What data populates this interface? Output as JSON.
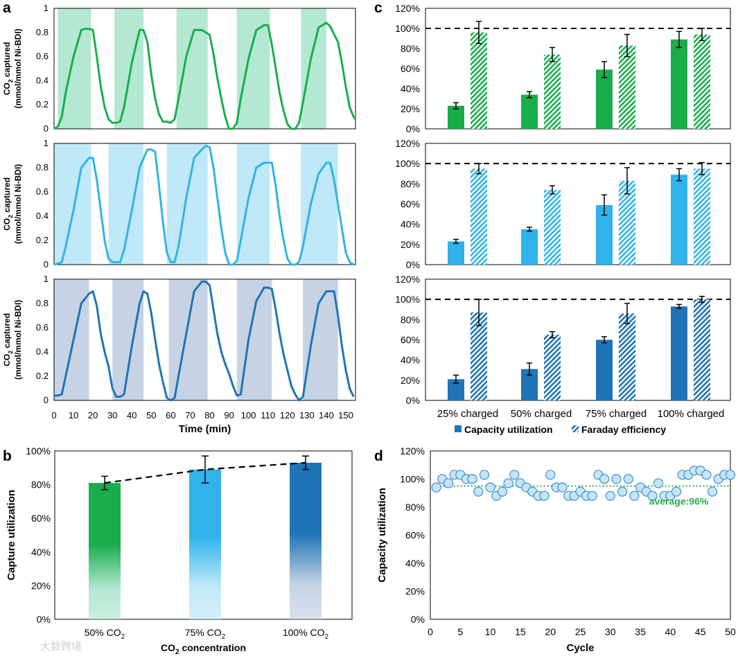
{
  "figure": {
    "panel_labels": [
      "a",
      "b",
      "c",
      "d"
    ],
    "watermark": "大数跨境"
  },
  "colors": {
    "green": "#1aad4b",
    "green_shade": "#b4e8d2",
    "cyan": "#2fb3ea",
    "cyan_shade": "#bfe9f8",
    "blue": "#1f73b7",
    "blue_shade": "#c5d3e4",
    "dashed_ref": "#000000",
    "avg_line": "#2ea84a",
    "scatter_fill": "#c9e4f6",
    "scatter_stroke": "#3a8fd0"
  },
  "chart_data": [
    {
      "panel": "a",
      "type": "line",
      "xlabel": "Time (min)",
      "ylabel_line1": "CO",
      "ylabel_sub": "2",
      "ylabel_line1_rest": " captured",
      "ylabel_line2": "(mmol/mmol Ni-BDI)",
      "xlim": [
        0,
        155
      ],
      "xticks": [
        "0",
        "10",
        "20",
        "30",
        "40",
        "50",
        "60",
        "70",
        "80",
        "90",
        "100",
        "110",
        "120",
        "130",
        "140",
        "150"
      ],
      "ylim": [
        0,
        1
      ],
      "yticks": [
        "0",
        "0.2",
        "0.4",
        "0.6",
        "0.8",
        "1"
      ],
      "rows": [
        {
          "color_key": "green",
          "shade_key": "green_shade",
          "shaded_intervals": [
            [
              2,
              19
            ],
            [
              31,
              46
            ],
            [
              63,
              79
            ],
            [
              94,
              111
            ],
            [
              127,
              140
            ]
          ],
          "x": [
            0,
            2,
            4,
            6,
            10,
            14,
            16,
            18,
            20,
            22,
            24,
            26,
            28,
            30,
            32,
            34,
            36,
            40,
            44,
            46,
            48,
            50,
            52,
            54,
            56,
            58,
            60,
            62,
            64,
            68,
            72,
            76,
            78,
            80,
            82,
            84,
            86,
            88,
            90,
            92,
            94,
            96,
            100,
            104,
            108,
            110,
            112,
            114,
            116,
            118,
            120,
            122,
            124,
            126,
            128,
            132,
            136,
            140,
            142,
            146,
            148,
            150,
            152,
            154,
            155
          ],
          "y": [
            0,
            0.02,
            0.1,
            0.3,
            0.6,
            0.82,
            0.83,
            0.83,
            0.82,
            0.6,
            0.35,
            0.18,
            0.08,
            0.05,
            0.05,
            0.06,
            0.18,
            0.55,
            0.82,
            0.82,
            0.72,
            0.45,
            0.25,
            0.12,
            0.06,
            0.06,
            0.05,
            0.08,
            0.25,
            0.6,
            0.82,
            0.82,
            0.8,
            0.78,
            0.62,
            0.42,
            0.25,
            0.1,
            0,
            0,
            0.05,
            0.25,
            0.58,
            0.82,
            0.86,
            0.86,
            0.7,
            0.5,
            0.3,
            0.15,
            0.04,
            0,
            0,
            0.05,
            0.22,
            0.58,
            0.84,
            0.88,
            0.85,
            0.72,
            0.55,
            0.35,
            0.18,
            0.1,
            0.08
          ]
        },
        {
          "color_key": "cyan",
          "shade_key": "cyan_shade",
          "shaded_intervals": [
            [
              0,
              19
            ],
            [
              28,
              46
            ],
            [
              58,
              79
            ],
            [
              94,
              111
            ],
            [
              127,
              146
            ]
          ],
          "x": [
            0,
            2,
            4,
            6,
            10,
            14,
            18,
            20,
            22,
            24,
            26,
            28,
            30,
            32,
            34,
            36,
            40,
            44,
            48,
            50,
            52,
            54,
            56,
            58,
            60,
            62,
            64,
            68,
            72,
            76,
            78,
            80,
            82,
            84,
            86,
            88,
            90,
            92,
            94,
            96,
            100,
            104,
            108,
            110,
            112,
            114,
            116,
            118,
            120,
            122,
            124,
            126,
            128,
            132,
            136,
            140,
            142,
            144,
            146,
            148,
            150,
            152,
            154
          ],
          "y": [
            0,
            0.01,
            0.02,
            0.15,
            0.45,
            0.8,
            0.88,
            0.88,
            0.7,
            0.45,
            0.2,
            0.05,
            0.02,
            0.02,
            0.02,
            0.12,
            0.45,
            0.8,
            0.95,
            0.95,
            0.93,
            0.65,
            0.35,
            0.1,
            0.02,
            0.02,
            0.15,
            0.55,
            0.88,
            0.95,
            0.98,
            0.97,
            0.8,
            0.55,
            0.3,
            0.1,
            0,
            0,
            0.03,
            0.2,
            0.55,
            0.8,
            0.84,
            0.84,
            0.84,
            0.65,
            0.4,
            0.2,
            0.05,
            0,
            0,
            0.02,
            0.15,
            0.5,
            0.75,
            0.84,
            0.84,
            0.7,
            0.5,
            0.3,
            0.1,
            0.02,
            0
          ]
        },
        {
          "color_key": "blue",
          "shade_key": "blue_shade",
          "shaded_intervals": [
            [
              0,
              18
            ],
            [
              30,
              46
            ],
            [
              59,
              79
            ],
            [
              94,
              112
            ],
            [
              128,
              146
            ]
          ],
          "x": [
            0,
            2,
            4,
            6,
            10,
            14,
            18,
            20,
            22,
            24,
            26,
            28,
            30,
            32,
            34,
            36,
            40,
            44,
            46,
            48,
            50,
            52,
            54,
            56,
            58,
            60,
            62,
            64,
            68,
            72,
            76,
            78,
            80,
            82,
            84,
            86,
            88,
            90,
            92,
            94,
            96,
            100,
            104,
            108,
            110,
            112,
            114,
            116,
            118,
            120,
            122,
            124,
            126,
            128,
            132,
            136,
            140,
            142,
            144,
            146,
            148,
            150,
            152,
            154
          ],
          "y": [
            0.04,
            0.04,
            0.05,
            0.2,
            0.5,
            0.8,
            0.88,
            0.9,
            0.78,
            0.55,
            0.4,
            0.28,
            0.1,
            0.03,
            0.03,
            0.05,
            0.45,
            0.8,
            0.9,
            0.88,
            0.72,
            0.5,
            0.3,
            0.15,
            0.02,
            0,
            0.02,
            0.2,
            0.55,
            0.9,
            0.98,
            0.98,
            0.95,
            0.75,
            0.55,
            0.4,
            0.3,
            0.22,
            0.12,
            0.04,
            0.05,
            0.5,
            0.82,
            0.93,
            0.93,
            0.92,
            0.75,
            0.55,
            0.38,
            0.25,
            0.12,
            0.05,
            0,
            0.03,
            0.45,
            0.8,
            0.9,
            0.9,
            0.9,
            0.7,
            0.45,
            0.25,
            0.1,
            0.03
          ]
        }
      ]
    },
    {
      "panel": "b",
      "type": "bar",
      "xlabel_main": "CO",
      "xlabel_sub": "2",
      "xlabel_rest": " concentration",
      "ylabel": "Capture utilization",
      "ylim": [
        0,
        100
      ],
      "yticks": [
        "0%",
        "20%",
        "40%",
        "60%",
        "80%",
        "100%"
      ],
      "categories": [
        {
          "main": "50% CO",
          "sub": "2"
        },
        {
          "main": "75% CO",
          "sub": "2"
        },
        {
          "main": "100% CO",
          "sub": "2"
        }
      ],
      "values": [
        81,
        89,
        93
      ],
      "errors": [
        4,
        8,
        4
      ],
      "bar_color_keys": [
        "green",
        "cyan",
        "blue"
      ],
      "dashed_trend": true
    },
    {
      "panel": "c",
      "type": "bar",
      "categories": [
        "25% charged",
        "50% charged",
        "75% charged",
        "100% charged"
      ],
      "ylim": [
        0,
        120
      ],
      "yticks": [
        "0%",
        "20%",
        "40%",
        "60%",
        "80%",
        "100%",
        "120%"
      ],
      "reference_line": 100,
      "legend": [
        "Capacity utilization",
        "Faraday efficiency"
      ],
      "rows": [
        {
          "color_key": "green",
          "series": [
            {
              "name": "Capacity utilization",
              "values": [
                23,
                34,
                59,
                89
              ],
              "errors": [
                3,
                3,
                8,
                8
              ]
            },
            {
              "name": "Faraday efficiency",
              "values": [
                96,
                74,
                83,
                94
              ],
              "errors": [
                11,
                7,
                11,
                6
              ]
            }
          ]
        },
        {
          "color_key": "cyan",
          "series": [
            {
              "name": "Capacity utilization",
              "values": [
                23,
                35,
                59,
                89
              ],
              "errors": [
                2,
                2,
                10,
                6
              ]
            },
            {
              "name": "Faraday efficiency",
              "values": [
                95,
                74,
                83,
                95
              ],
              "errors": [
                5,
                4,
                13,
                6
              ]
            }
          ]
        },
        {
          "color_key": "blue",
          "series": [
            {
              "name": "Capacity utilization",
              "values": [
                21,
                31,
                60,
                93
              ],
              "errors": [
                4,
                6,
                3,
                2
              ]
            },
            {
              "name": "Faraday efficiency",
              "values": [
                87,
                65,
                86,
                100
              ],
              "errors": [
                13,
                3,
                10,
                3
              ]
            }
          ]
        }
      ]
    },
    {
      "panel": "d",
      "type": "scatter",
      "xlabel": "Cycle",
      "ylabel": "Capacity utilization",
      "xlim": [
        0,
        50
      ],
      "xticks": [
        "0",
        "5",
        "10",
        "15",
        "20",
        "25",
        "30",
        "35",
        "40",
        "45",
        "50"
      ],
      "ylim": [
        0,
        120
      ],
      "yticks": [
        "0%",
        "20%",
        "40%",
        "60%",
        "80%",
        "100%",
        "120%"
      ],
      "average_line": 95,
      "annotation": "average:96%",
      "x": [
        1,
        2,
        3,
        4,
        5,
        6,
        7,
        8,
        9,
        10,
        11,
        12,
        13,
        14,
        15,
        16,
        17,
        18,
        19,
        20,
        21,
        22,
        23,
        24,
        25,
        26,
        27,
        28,
        29,
        30,
        31,
        32,
        33,
        34,
        35,
        36,
        37,
        38,
        39,
        40,
        41,
        42,
        43,
        44,
        45,
        46,
        47,
        48,
        49,
        50
      ],
      "y": [
        94,
        100,
        97,
        103,
        103,
        100,
        100,
        91,
        103,
        94,
        88,
        91,
        97,
        103,
        97,
        94,
        91,
        88,
        88,
        103,
        94,
        94,
        88,
        88,
        91,
        88,
        88,
        103,
        100,
        88,
        100,
        91,
        100,
        88,
        94,
        91,
        88,
        97,
        88,
        88,
        91,
        103,
        103,
        106,
        106,
        103,
        91,
        100,
        103,
        103
      ]
    }
  ]
}
